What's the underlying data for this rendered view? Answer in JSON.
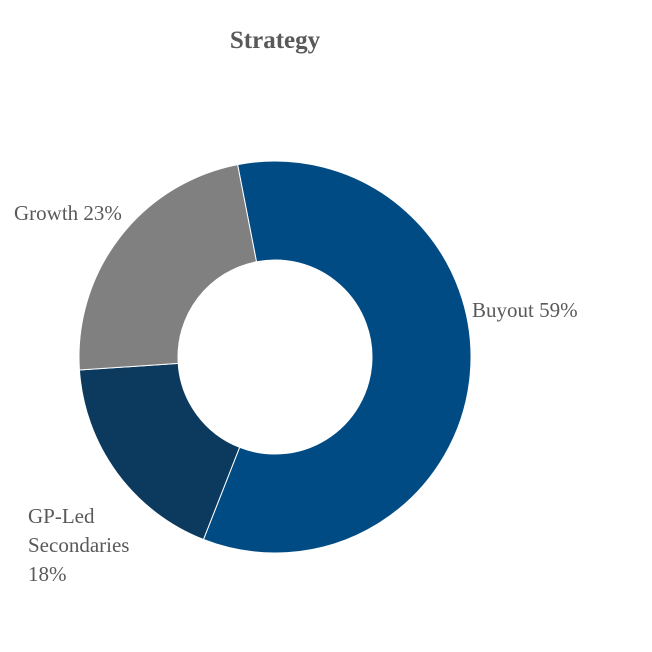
{
  "chart_data": {
    "type": "pie",
    "variant": "donut",
    "title": "Strategy",
    "legend": "none",
    "slices": [
      {
        "label": "Buyout",
        "value": 59,
        "display": "59%",
        "color": "#004B84"
      },
      {
        "label": "GP-Led Secondaries",
        "value": 18,
        "display": "18%",
        "color": "#0B3A5E"
      },
      {
        "label": "Growth",
        "value": 23,
        "display": "23%",
        "color": "#808080"
      }
    ],
    "data_labels": [
      {
        "slice": "Buyout",
        "lines": [
          "Buyout 59%"
        ]
      },
      {
        "slice": "GP-Led Secondaries",
        "lines": [
          "GP-Led",
          "Secondaries",
          "18%"
        ]
      },
      {
        "slice": "Growth",
        "lines": [
          "Growth 23%"
        ]
      }
    ]
  }
}
